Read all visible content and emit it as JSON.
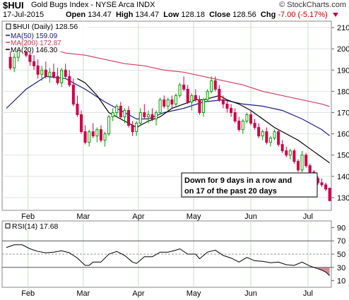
{
  "header": {
    "symbol": "$HUI",
    "name": "Gold Bugs Index - NYSE Arca INDX",
    "brand": "© StockCharts.com",
    "date": "17-Jul-2015",
    "open_label": "Open",
    "open": "134.47",
    "high_label": "High",
    "high": "134.47",
    "low_label": "Low",
    "low": "128.18",
    "close_label": "Close",
    "close": "128.56",
    "chg_label": "Chg",
    "chg": "-7.00 (-5.17%)"
  },
  "legend": {
    "main": "$HUI (Daily) 128.56",
    "ma50": "MA(50) 159.09",
    "ma200": "MA(200) 172.87",
    "ma20": "MA(20) 146.30",
    "rsi": "RSI(14) 17.68"
  },
  "annotation": {
    "line1": "Down for 9 days in a row and",
    "line2": "on 17 of the past 20 days"
  },
  "colors": {
    "up": "#00a000",
    "down": "#d00045",
    "ma50": "#1a1a8c",
    "ma200": "#d0405c",
    "ma20": "#000000",
    "rsi": "#000000",
    "rsi_fill": "#c07080"
  },
  "chart_data": [
    {
      "type": "candlestick",
      "title": "$HUI (Daily) 128.56",
      "ylim": [
        124,
        213
      ],
      "y_ticks": [
        130,
        140,
        150,
        160,
        170,
        180,
        190,
        200,
        210
      ],
      "x_ticks": [
        {
          "label": "Feb",
          "day": 11
        },
        {
          "label": "Mar",
          "day": 39
        },
        {
          "label": "Apr",
          "day": 67
        },
        {
          "label": "May",
          "day": 95
        },
        {
          "label": "Jun",
          "day": 124
        },
        {
          "label": "Jul",
          "day": 153
        }
      ],
      "days_total": 167,
      "ohlc_fields": [
        "day",
        "open",
        "high",
        "low",
        "close"
      ],
      "ohlc": [
        [
          2,
          196,
          199,
          190,
          191
        ],
        [
          4,
          191,
          198,
          189,
          196
        ],
        [
          6,
          196,
          203,
          194,
          201
        ],
        [
          8,
          201,
          206,
          199,
          203
        ],
        [
          10,
          203,
          205,
          196,
          197
        ],
        [
          12,
          197,
          199,
          192,
          194
        ],
        [
          14,
          194,
          197,
          190,
          192
        ],
        [
          16,
          192,
          195,
          186,
          188
        ],
        [
          18,
          188,
          192,
          185,
          190
        ],
        [
          20,
          190,
          194,
          186,
          187
        ],
        [
          22,
          187,
          191,
          184,
          189
        ],
        [
          24,
          189,
          193,
          186,
          187
        ],
        [
          26,
          187,
          191,
          183,
          184
        ],
        [
          28,
          184,
          191,
          182,
          190
        ],
        [
          30,
          190,
          193,
          186,
          187
        ],
        [
          32,
          187,
          190,
          182,
          183
        ],
        [
          34,
          183,
          186,
          173,
          174
        ],
        [
          36,
          174,
          178,
          168,
          169
        ],
        [
          38,
          169,
          171,
          160,
          161
        ],
        [
          40,
          161,
          164,
          155,
          156
        ],
        [
          42,
          156,
          162,
          154,
          161
        ],
        [
          44,
          161,
          165,
          158,
          159
        ],
        [
          46,
          159,
          163,
          156,
          162
        ],
        [
          48,
          162,
          164,
          156,
          157
        ],
        [
          50,
          157,
          161,
          154,
          160
        ],
        [
          52,
          160,
          169,
          159,
          168
        ],
        [
          54,
          168,
          172,
          166,
          170
        ],
        [
          56,
          170,
          174,
          168,
          173
        ],
        [
          58,
          173,
          175,
          167,
          168
        ],
        [
          60,
          168,
          172,
          165,
          171
        ],
        [
          62,
          171,
          173,
          163,
          164
        ],
        [
          64,
          164,
          166,
          159,
          161
        ],
        [
          66,
          161,
          166,
          159,
          165
        ],
        [
          68,
          165,
          172,
          164,
          170
        ],
        [
          70,
          170,
          174,
          167,
          168
        ],
        [
          72,
          168,
          171,
          165,
          169
        ],
        [
          74,
          169,
          172,
          166,
          167
        ],
        [
          76,
          167,
          171,
          164,
          170
        ],
        [
          78,
          170,
          177,
          169,
          176
        ],
        [
          80,
          176,
          178,
          172,
          173
        ],
        [
          82,
          173,
          177,
          171,
          176
        ],
        [
          84,
          176,
          178,
          172,
          174
        ],
        [
          86,
          174,
          179,
          173,
          178
        ],
        [
          88,
          178,
          184,
          177,
          183
        ],
        [
          90,
          183,
          187,
          180,
          181
        ],
        [
          92,
          181,
          183,
          174,
          175
        ],
        [
          94,
          175,
          179,
          171,
          178
        ],
        [
          96,
          178,
          181,
          175,
          176
        ],
        [
          98,
          176,
          178,
          169,
          170
        ],
        [
          100,
          170,
          177,
          168,
          176
        ],
        [
          102,
          176,
          181,
          175,
          180
        ],
        [
          104,
          180,
          187,
          179,
          185
        ],
        [
          106,
          185,
          187,
          180,
          181
        ],
        [
          108,
          181,
          183,
          175,
          176
        ],
        [
          110,
          176,
          178,
          172,
          174
        ],
        [
          112,
          174,
          176,
          170,
          172
        ],
        [
          114,
          172,
          174,
          168,
          170
        ],
        [
          116,
          170,
          172,
          165,
          166
        ],
        [
          118,
          166,
          168,
          161,
          162
        ],
        [
          120,
          162,
          167,
          160,
          166
        ],
        [
          122,
          166,
          170,
          165,
          169
        ],
        [
          124,
          169,
          171,
          164,
          165
        ],
        [
          126,
          165,
          167,
          162,
          163
        ],
        [
          128,
          163,
          165,
          158,
          159
        ],
        [
          130,
          159,
          162,
          157,
          161
        ],
        [
          132,
          161,
          163,
          155,
          156
        ],
        [
          134,
          156,
          159,
          154,
          158
        ],
        [
          136,
          158,
          162,
          157,
          161
        ],
        [
          138,
          161,
          162,
          154,
          155
        ],
        [
          140,
          155,
          157,
          151,
          152
        ],
        [
          142,
          152,
          154,
          149,
          150
        ],
        [
          144,
          150,
          153,
          148,
          152
        ],
        [
          146,
          152,
          153,
          146,
          147
        ],
        [
          148,
          147,
          148,
          142,
          143
        ],
        [
          150,
          143,
          152,
          142,
          150
        ],
        [
          152,
          150,
          151,
          144,
          145
        ],
        [
          154,
          145,
          146,
          141,
          142
        ],
        [
          156,
          142,
          143,
          138,
          139
        ],
        [
          158,
          139,
          140,
          136,
          137
        ],
        [
          160,
          137,
          139,
          135,
          136
        ],
        [
          162,
          136,
          137,
          133,
          134
        ],
        [
          164,
          134.47,
          134.47,
          128.18,
          128.56
        ]
      ],
      "series": [
        {
          "name": "MA(50)",
          "key": "ma50",
          "points": [
            [
              0,
              172
            ],
            [
              10,
              181
            ],
            [
              20,
              187
            ],
            [
              30,
              186
            ],
            [
              40,
              181
            ],
            [
              50,
              175
            ],
            [
              60,
              170
            ],
            [
              66,
              167
            ],
            [
              72,
              167
            ],
            [
              80,
              170
            ],
            [
              90,
              172
            ],
            [
              100,
              175
            ],
            [
              110,
              176
            ],
            [
              120,
              174
            ],
            [
              130,
              173
            ],
            [
              140,
              171
            ],
            [
              150,
              167
            ],
            [
              160,
              162
            ],
            [
              164,
              159.09
            ]
          ]
        },
        {
          "name": "MA(200)",
          "key": "ma200",
          "points": [
            [
              0,
              206
            ],
            [
              10,
              204
            ],
            [
              20,
              201
            ],
            [
              30,
              198
            ],
            [
              40,
              197
            ],
            [
              50,
              195
            ],
            [
              60,
              193
            ],
            [
              70,
              192
            ],
            [
              80,
              190
            ],
            [
              90,
              189
            ],
            [
              100,
              187
            ],
            [
              110,
              185
            ],
            [
              120,
              183
            ],
            [
              130,
              180
            ],
            [
              140,
              178
            ],
            [
              150,
              176
            ],
            [
              160,
              174
            ],
            [
              164,
              172.87
            ]
          ]
        },
        {
          "name": "MA(20)",
          "key": "ma20",
          "points": [
            [
              36,
              186
            ],
            [
              40,
              184
            ],
            [
              46,
              178
            ],
            [
              52,
              170
            ],
            [
              58,
              167
            ],
            [
              62,
              165
            ],
            [
              66,
              163
            ],
            [
              72,
              166
            ],
            [
              78,
              168
            ],
            [
              84,
              172
            ],
            [
              90,
              174
            ],
            [
              96,
              176
            ],
            [
              100,
              176
            ],
            [
              104,
              177
            ],
            [
              108,
              178
            ],
            [
              112,
              176
            ],
            [
              118,
              174
            ],
            [
              124,
              171
            ],
            [
              130,
              167
            ],
            [
              136,
              163
            ],
            [
              142,
              160
            ],
            [
              148,
              157
            ],
            [
              154,
              153
            ],
            [
              160,
              149
            ],
            [
              164,
              146.3
            ]
          ]
        }
      ]
    },
    {
      "type": "line",
      "title": "RSI(14) 17.68",
      "ylim": [
        0,
        100
      ],
      "y_ticks": [
        10,
        30,
        50,
        70,
        90
      ],
      "ref_lines": [
        30,
        50,
        70
      ],
      "x_ticks": [
        {
          "label": "Feb",
          "day": 11
        },
        {
          "label": "Mar",
          "day": 39
        },
        {
          "label": "Apr",
          "day": 67
        },
        {
          "label": "May",
          "day": 95
        },
        {
          "label": "Jun",
          "day": 124
        },
        {
          "label": "Jul",
          "day": 153
        }
      ],
      "series": [
        {
          "name": "RSI(14)",
          "points": [
            [
              0,
              60
            ],
            [
              4,
              64
            ],
            [
              8,
              64
            ],
            [
              12,
              58
            ],
            [
              16,
              54
            ],
            [
              20,
              52
            ],
            [
              24,
              53
            ],
            [
              28,
              55
            ],
            [
              32,
              52
            ],
            [
              36,
              44
            ],
            [
              40,
              33
            ],
            [
              42,
              33
            ],
            [
              44,
              38
            ],
            [
              48,
              38
            ],
            [
              52,
              50
            ],
            [
              56,
              54
            ],
            [
              60,
              48
            ],
            [
              64,
              38
            ],
            [
              66,
              36
            ],
            [
              70,
              46
            ],
            [
              74,
              46
            ],
            [
              78,
              53
            ],
            [
              82,
              53
            ],
            [
              86,
              56
            ],
            [
              88,
              58
            ],
            [
              92,
              50
            ],
            [
              96,
              50
            ],
            [
              98,
              43
            ],
            [
              102,
              53
            ],
            [
              106,
              56
            ],
            [
              110,
              48
            ],
            [
              114,
              44
            ],
            [
              118,
              38
            ],
            [
              122,
              45
            ],
            [
              126,
              40
            ],
            [
              130,
              39
            ],
            [
              134,
              37
            ],
            [
              138,
              38
            ],
            [
              142,
              34
            ],
            [
              146,
              33
            ],
            [
              150,
              38
            ],
            [
              154,
              32
            ],
            [
              158,
              28
            ],
            [
              160,
              26
            ],
            [
              162,
              23
            ],
            [
              164,
              17.68
            ]
          ]
        }
      ]
    }
  ]
}
